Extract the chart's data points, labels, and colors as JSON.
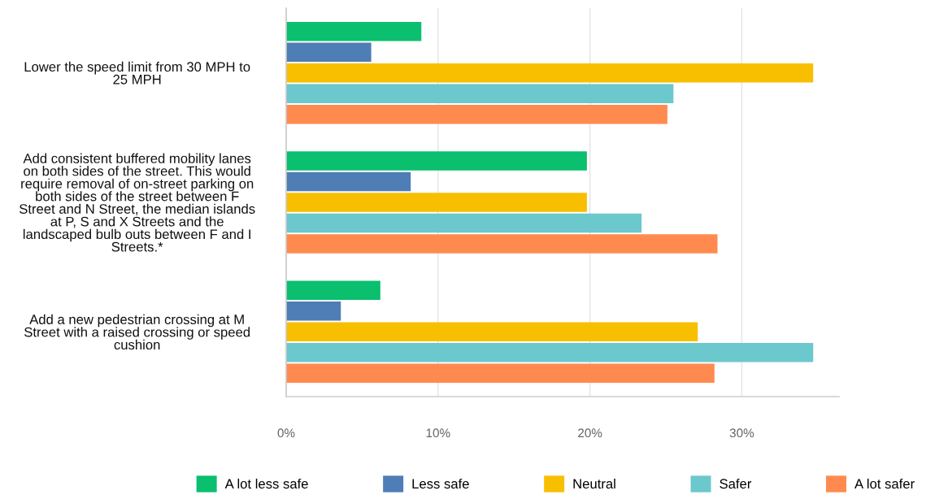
{
  "chart_data": {
    "type": "bar",
    "orientation": "horizontal",
    "categories": [
      "Lower the speed limit from 30 MPH to\n25 MPH",
      "Add consistent buffered mobility lanes\non both sides of the street. This would\nrequire removal of on-street parking on\nboth sides of the street between F\nStreet and N Street, the median islands\nat P, S and X Streets and the\nlandscaped bulb outs between F and I\nStreets.*",
      "Add a new pedestrian crossing at M\nStreet with a raised crossing or speed\ncushion"
    ],
    "series": [
      {
        "name": "A lot less safe",
        "color": "#0abf6e",
        "values": [
          8.9,
          19.8,
          6.2
        ]
      },
      {
        "name": "Less safe",
        "color": "#4f7db5",
        "values": [
          5.6,
          8.2,
          3.6
        ]
      },
      {
        "name": "Neutral",
        "color": "#f8bf00",
        "values": [
          34.7,
          19.8,
          27.1
        ]
      },
      {
        "name": "Safer",
        "color": "#6bc8cc",
        "values": [
          25.5,
          23.4,
          34.7
        ]
      },
      {
        "name": "A lot safer",
        "color": "#ff8a50",
        "values": [
          25.1,
          28.4,
          28.2
        ]
      }
    ],
    "xlim": [
      0,
      36.4
    ],
    "xticks": [
      {
        "value": 0,
        "label": "0%"
      },
      {
        "value": 10,
        "label": "10%"
      },
      {
        "value": 20,
        "label": "20%"
      },
      {
        "value": 30,
        "label": "30%"
      }
    ],
    "grid": "x",
    "legend": "bottom"
  }
}
